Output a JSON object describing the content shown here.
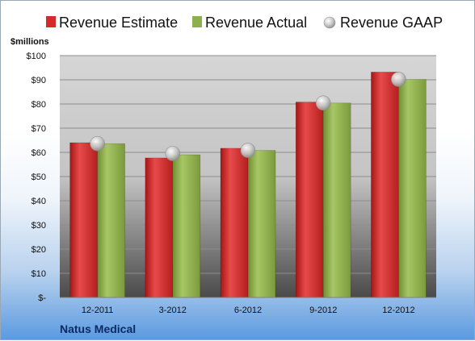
{
  "chart_data": {
    "type": "bar",
    "ylabel": "$millions",
    "ylim": [
      0,
      100
    ],
    "ytick_values": [
      0,
      10,
      20,
      30,
      40,
      50,
      60,
      70,
      80,
      90,
      100
    ],
    "ytick_labels": [
      "$-",
      "$10",
      "$20",
      "$30",
      "$40",
      "$50",
      "$60",
      "$70",
      "$80",
      "$90",
      "$100"
    ],
    "categories": [
      "12-2011",
      "3-2012",
      "6-2012",
      "9-2012",
      "12-2012"
    ],
    "series": [
      {
        "name": "Revenue Estimate",
        "kind": "bar",
        "color": "#d42a2a",
        "values": [
          64,
          57.7,
          61.7,
          80.8,
          93.2
        ]
      },
      {
        "name": "Revenue Actual",
        "kind": "bar",
        "color": "#8eb04c",
        "values": [
          63.6,
          59,
          60.8,
          80.4,
          90.2
        ]
      },
      {
        "name": "Revenue GAAP",
        "kind": "marker",
        "color": "#c8c8c8",
        "values": [
          63.6,
          59.5,
          60.8,
          80.4,
          90.2
        ]
      }
    ],
    "grid": true,
    "legend_position": "top"
  },
  "company_name": "Natus Medical"
}
